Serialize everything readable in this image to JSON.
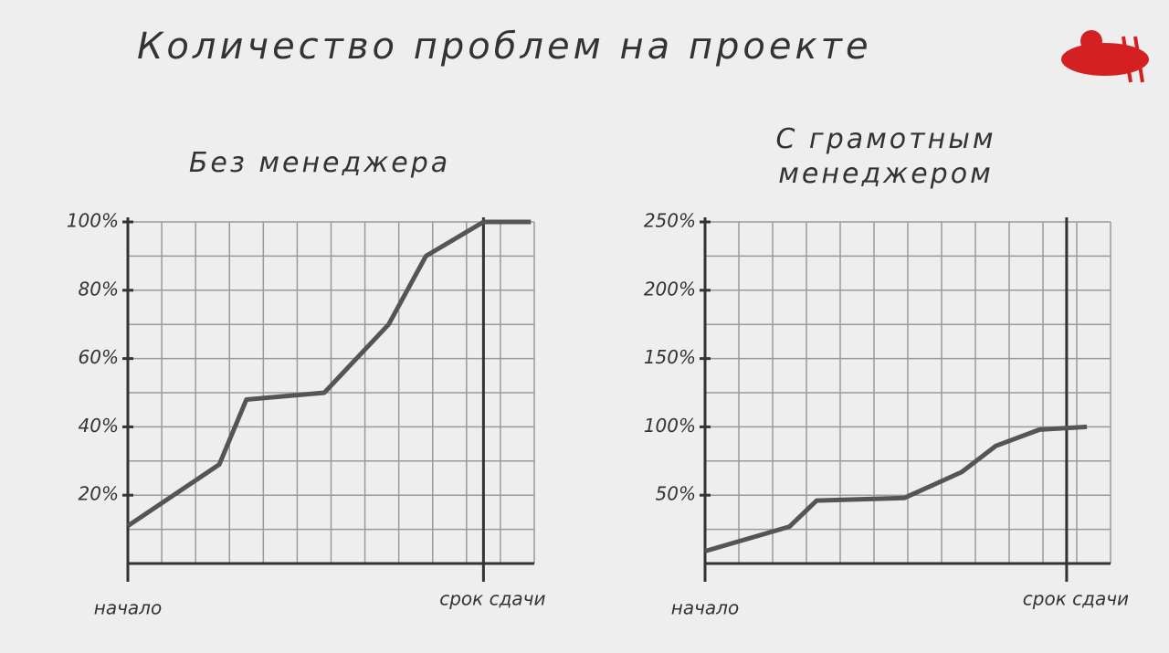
{
  "title": "Количество проблем на проекте",
  "chart_data": [
    {
      "type": "line",
      "subtitle": "Без менеджера",
      "x": [
        0,
        2.7,
        3.5,
        5.8,
        7.7,
        8.8,
        10.5,
        11.9
      ],
      "values": [
        11,
        29,
        48,
        50,
        70,
        90,
        100,
        100
      ],
      "color": "#555555",
      "xlim": [
        0,
        12
      ],
      "ylim": [
        0,
        100
      ],
      "xticks": [
        {
          "value": 0,
          "label": "начало"
        },
        {
          "value": 10.5,
          "label": "срок сдачи"
        }
      ],
      "yticks": [
        {
          "value": 20,
          "label": "20%"
        },
        {
          "value": 40,
          "label": "40%"
        },
        {
          "value": 60,
          "label": "60%"
        },
        {
          "value": 80,
          "label": "80%"
        },
        {
          "value": 100,
          "label": "100%"
        }
      ],
      "grid": true,
      "xgrid_step": 1,
      "ygrid_step": 10
    },
    {
      "type": "line",
      "subtitle": "С грамотным менеджером",
      "x": [
        0,
        2.5,
        3.3,
        5.9,
        7.6,
        8.6,
        9.9,
        11.3
      ],
      "values": [
        9,
        27,
        46,
        48,
        67,
        86,
        98,
        100
      ],
      "color": "#555555",
      "xlim": [
        0,
        12
      ],
      "ylim": [
        0,
        250
      ],
      "xticks": [
        {
          "value": 0,
          "label": "начало"
        },
        {
          "value": 10.7,
          "label": "срок сдачи"
        }
      ],
      "yticks": [
        {
          "value": 50,
          "label": "50%"
        },
        {
          "value": 100,
          "label": "100%"
        },
        {
          "value": 150,
          "label": "150%"
        },
        {
          "value": 200,
          "label": "200%"
        },
        {
          "value": 250,
          "label": "250%"
        }
      ],
      "grid": true,
      "xgrid_step": 1,
      "ygrid_step": 25
    }
  ]
}
